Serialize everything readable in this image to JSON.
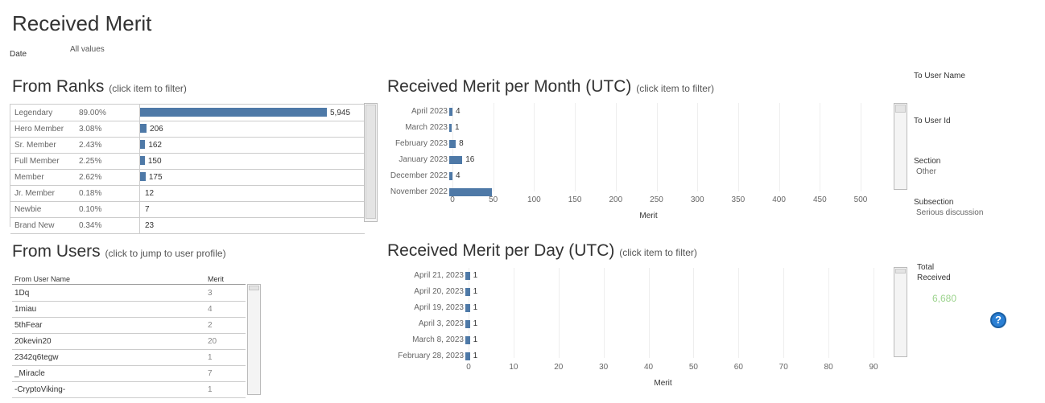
{
  "page": {
    "title": "Received Merit",
    "date_filter_label": "Date",
    "date_filter_value": "All values"
  },
  "from_ranks": {
    "title": "From Ranks",
    "hint": "(click item to filter)",
    "rows": [
      {
        "rank": "Legendary",
        "pct": "89.00%",
        "value": 5945,
        "label": "5,945"
      },
      {
        "rank": "Hero Member",
        "pct": "3.08%",
        "value": 206,
        "label": "206"
      },
      {
        "rank": "Sr. Member",
        "pct": "2.43%",
        "value": 162,
        "label": "162"
      },
      {
        "rank": "Full Member",
        "pct": "2.25%",
        "value": 150,
        "label": "150"
      },
      {
        "rank": "Member",
        "pct": "2.62%",
        "value": 175,
        "label": "175"
      },
      {
        "rank": "Jr. Member",
        "pct": "0.18%",
        "value": 12,
        "label": "12"
      },
      {
        "rank": "Newbie",
        "pct": "0.10%",
        "value": 7,
        "label": "7"
      },
      {
        "rank": "Brand New",
        "pct": "0.34%",
        "value": 23,
        "label": "23"
      }
    ],
    "max_value": 5945
  },
  "per_month": {
    "title": "Received Merit per Month (UTC)",
    "hint": "(click item to filter)",
    "axis_title": "Merit",
    "ticks": [
      "0",
      "50",
      "100",
      "150",
      "200",
      "250",
      "300",
      "350",
      "400",
      "450",
      "500"
    ],
    "rows": [
      {
        "month": "April 2023",
        "value": 4,
        "label": "4"
      },
      {
        "month": "March 2023",
        "value": 1,
        "label": "1"
      },
      {
        "month": "February 2023",
        "value": 8,
        "label": "8"
      },
      {
        "month": "January 2023",
        "value": 16,
        "label": "16"
      },
      {
        "month": "December 2022",
        "value": 4,
        "label": "4"
      },
      {
        "month": "November 2022",
        "value": 52,
        "label": ""
      }
    ]
  },
  "side_filters": {
    "to_user_name_label": "To User Name",
    "to_user_id_label": "To User Id",
    "section_label": "Section",
    "section_value": "Other",
    "subsection_label": "Subsection",
    "subsection_value": "Serious discussion"
  },
  "from_users": {
    "title": "From Users",
    "hint": "(click to jump to user profile)",
    "col_name": "From User Name",
    "col_merit": "Merit",
    "rows": [
      {
        "name": "1Dq",
        "merit": "3"
      },
      {
        "name": "1miau",
        "merit": "4"
      },
      {
        "name": "5thFear",
        "merit": "2"
      },
      {
        "name": "20kevin20",
        "merit": "20"
      },
      {
        "name": "2342q6tegw",
        "merit": "1"
      },
      {
        "name": "_Miracle",
        "merit": "7"
      },
      {
        "name": "-CryptoViking-",
        "merit": "1"
      }
    ]
  },
  "per_day": {
    "title": "Received Merit per Day (UTC)",
    "hint": "(click item to filter)",
    "axis_title": "Merit",
    "ticks": [
      "0",
      "10",
      "20",
      "30",
      "40",
      "50",
      "60",
      "70",
      "80",
      "90"
    ],
    "rows": [
      {
        "day": "April 21, 2023",
        "value": 1,
        "label": "1"
      },
      {
        "day": "April 20, 2023",
        "value": 1,
        "label": "1"
      },
      {
        "day": "April 19, 2023",
        "value": 1,
        "label": "1"
      },
      {
        "day": "April 3, 2023",
        "value": 1,
        "label": "1"
      },
      {
        "day": "March 8, 2023",
        "value": 1,
        "label": "1"
      },
      {
        "day": "February 28, 2023",
        "value": 1,
        "label": "1"
      }
    ]
  },
  "totals": {
    "label_line1": "Total",
    "label_line2": "Received",
    "value": "6,680",
    "value_color": "#9bd38c"
  },
  "help": {
    "glyph": "?"
  },
  "colors": {
    "bar": "#4e79a7"
  }
}
